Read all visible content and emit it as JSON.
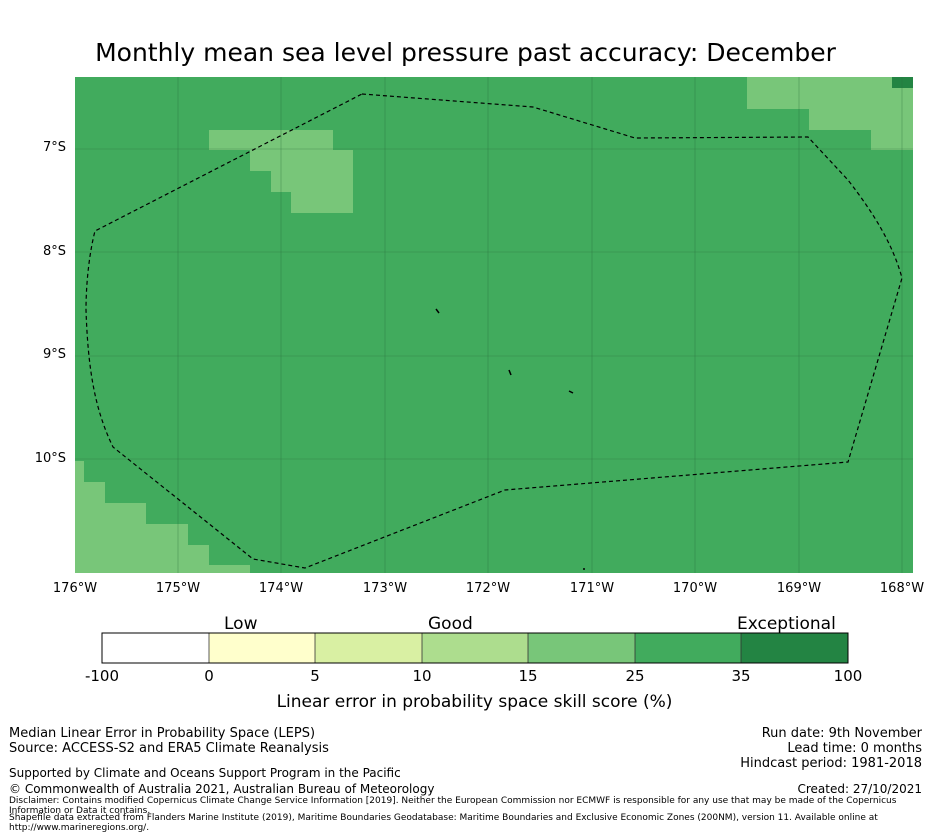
{
  "title": "Monthly mean sea level pressure past accuracy: December",
  "map": {
    "lat_labels": [
      "7°S",
      "8°S",
      "9°S",
      "10°S"
    ],
    "lon_labels": [
      "176°W",
      "175°W",
      "174°W",
      "173°W",
      "172°W",
      "171°W",
      "170°W",
      "169°W",
      "168°W"
    ],
    "base_skill_category": "25-35",
    "patch_skill_category": "15-25",
    "eez_boundary_style": "dashed"
  },
  "colorbar": {
    "categories": [
      {
        "label": "Low",
        "range": "0 to 15"
      },
      {
        "label": "Good",
        "range": "15 to 35"
      },
      {
        "label": "Exceptional",
        "range": "35 to 100"
      }
    ],
    "ticks": [
      "-100",
      "0",
      "5",
      "10",
      "15",
      "25",
      "35",
      "100"
    ],
    "colors": [
      "#ffffff",
      "#ffffcc",
      "#d9f0a3",
      "#addd8e",
      "#78c679",
      "#41ab5d",
      "#238443"
    ],
    "title": "Linear error in probability space skill score (%)"
  },
  "footer": {
    "line1": "Median Linear Error in Probability Space (LEPS)",
    "line2": "Source: ACCESS-S2 and ERA5 Climate Reanalysis",
    "line3": "Supported by Climate and Oceans Support Program in the Pacific",
    "line4": "© Commonwealth of Australia 2021, Australian Bureau of Meteorology",
    "run_date": "Run date: 9th November",
    "lead_time": "Lead time: 0 months",
    "hindcast": "Hindcast period: 1981-2018",
    "created": "Created: 27/10/2021",
    "disclaimer": "Disclaimer: Contains modified Copernicus Climate Change Service Information [2019]. Neither the European Commission nor ECMWF is responsible for any use that may be made of the Copernicus Information or Data it contains.",
    "shapefile": "Shapefile data extracted from Flanders Marine Institute (2019), Maritime Boundaries Geodatabase: Maritime Boundaries and Exclusive Economic Zones (200NM), version 11. Available online at http://www.marineregions.org/."
  }
}
